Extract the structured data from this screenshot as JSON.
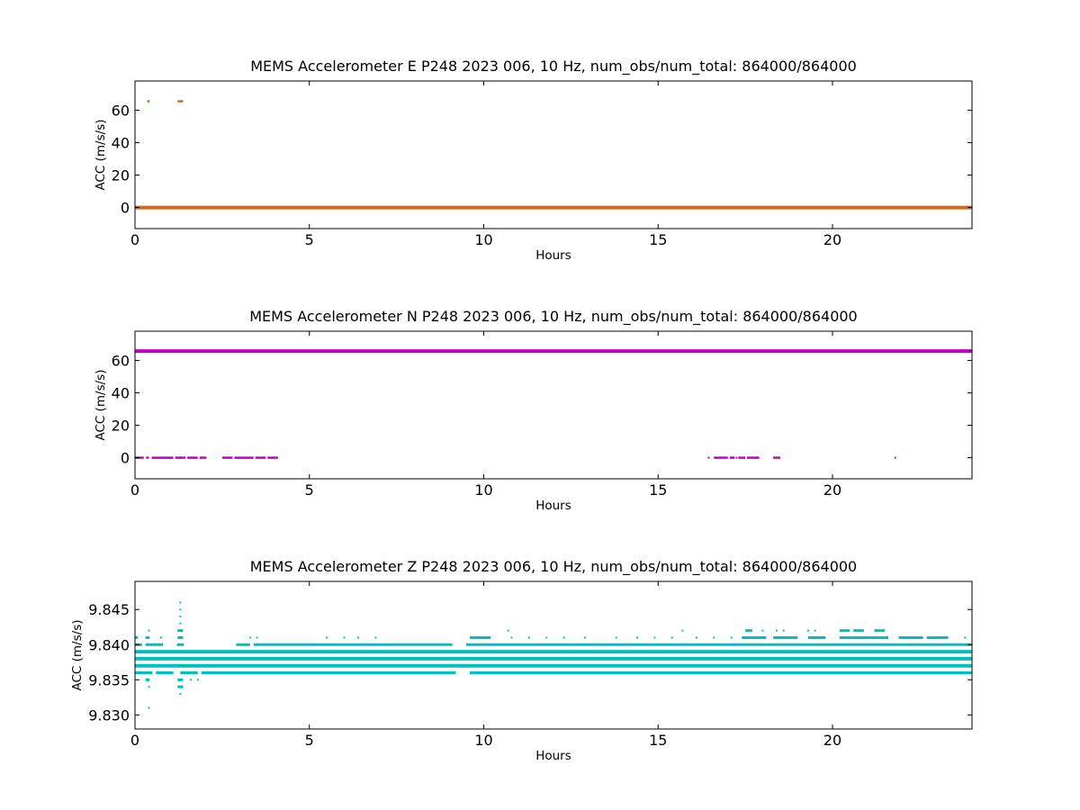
{
  "chart_data": [
    {
      "type": "scatter",
      "title": "MEMS Accelerometer E P248 2023 006, 10 Hz, num_obs/num_total: 864000/864000",
      "xlabel": "Hours",
      "ylabel": "ACC (m/s/s)",
      "xlim": [
        0,
        24
      ],
      "ylim": [
        -13,
        78
      ],
      "xticks": [
        0,
        5,
        10,
        15,
        20
      ],
      "yticks": [
        0,
        20,
        40,
        60
      ],
      "ytick_labels": [
        "0",
        "20",
        "40",
        "60"
      ],
      "grid": false,
      "color": "#d2691e",
      "series": [
        {
          "bands": [
            {
              "y": 0,
              "x_start": 0,
              "x_end": 24
            }
          ],
          "segments": [
            {
              "y": 65.5,
              "x_start": 0.35,
              "x_end": 0.42
            },
            {
              "y": 65.5,
              "x_start": 1.22,
              "x_end": 1.38
            }
          ],
          "points": []
        }
      ]
    },
    {
      "type": "scatter",
      "title": "MEMS Accelerometer N P248 2023 006, 10 Hz, num_obs/num_total: 864000/864000",
      "xlabel": "Hours",
      "ylabel": "ACC (m/s/s)",
      "xlim": [
        0,
        24
      ],
      "ylim": [
        -13,
        78
      ],
      "xticks": [
        0,
        5,
        10,
        15,
        20
      ],
      "yticks": [
        0,
        20,
        40,
        60
      ],
      "ytick_labels": [
        "0",
        "20",
        "40",
        "60"
      ],
      "grid": false,
      "color": "#bf00bf",
      "series": [
        {
          "bands": [
            {
              "y": 65.7,
              "x_start": 0,
              "x_end": 24
            }
          ],
          "segments": [
            {
              "y": 0,
              "x_start": 0.0,
              "x_end": 0.25
            },
            {
              "y": 0,
              "x_start": 0.32,
              "x_end": 0.4
            },
            {
              "y": 0,
              "x_start": 0.48,
              "x_end": 1.1
            },
            {
              "y": 0,
              "x_start": 1.15,
              "x_end": 1.45
            },
            {
              "y": 0,
              "x_start": 1.5,
              "x_end": 1.8
            },
            {
              "y": 0,
              "x_start": 1.85,
              "x_end": 2.05
            },
            {
              "y": 0,
              "x_start": 2.5,
              "x_end": 2.8
            },
            {
              "y": 0,
              "x_start": 2.85,
              "x_end": 3.4
            },
            {
              "y": 0,
              "x_start": 3.45,
              "x_end": 3.75
            },
            {
              "y": 0,
              "x_start": 3.8,
              "x_end": 4.1
            },
            {
              "y": 0,
              "x_start": 16.6,
              "x_end": 17.0
            },
            {
              "y": 0,
              "x_start": 17.05,
              "x_end": 17.2
            },
            {
              "y": 0,
              "x_start": 17.3,
              "x_end": 17.5
            },
            {
              "y": 0,
              "x_start": 17.55,
              "x_end": 17.9
            },
            {
              "y": 0,
              "x_start": 18.3,
              "x_end": 18.5
            }
          ],
          "points": [
            {
              "x": 16.45,
              "y": 0
            },
            {
              "x": 17.25,
              "y": 0
            },
            {
              "x": 21.8,
              "y": 0
            }
          ]
        }
      ]
    },
    {
      "type": "scatter",
      "title": "MEMS Accelerometer Z P248 2023 006, 10 Hz, num_obs/num_total: 864000/864000",
      "xlabel": "Hours",
      "ylabel": "ACC (m/s/s)",
      "xlim": [
        0,
        24
      ],
      "ylim": [
        9.828,
        9.849
      ],
      "xticks": [
        0,
        5,
        10,
        15,
        20
      ],
      "yticks": [
        9.83,
        9.835,
        9.84,
        9.845
      ],
      "ytick_labels": [
        "9.830",
        "9.835",
        "9.840",
        "9.845"
      ],
      "grid": false,
      "color": "#00bfbf",
      "series": [
        {
          "bands": [
            {
              "y": 9.837,
              "x_start": 0,
              "x_end": 24
            },
            {
              "y": 9.838,
              "x_start": 0,
              "x_end": 24
            },
            {
              "y": 9.839,
              "x_start": 0,
              "x_end": 24
            }
          ],
          "segments": [
            {
              "y": 9.84,
              "x_start": 0,
              "x_end": 0.2
            },
            {
              "y": 9.84,
              "x_start": 0.3,
              "x_end": 0.8
            },
            {
              "y": 9.84,
              "x_start": 1.2,
              "x_end": 1.4
            },
            {
              "y": 9.84,
              "x_start": 2.9,
              "x_end": 3.3
            },
            {
              "y": 9.84,
              "x_start": 3.4,
              "x_end": 9.1
            },
            {
              "y": 9.84,
              "x_start": 9.5,
              "x_end": 24
            },
            {
              "y": 9.836,
              "x_start": 0,
              "x_end": 0.5
            },
            {
              "y": 9.836,
              "x_start": 0.6,
              "x_end": 1.1
            },
            {
              "y": 9.836,
              "x_start": 1.3,
              "x_end": 1.8
            },
            {
              "y": 9.836,
              "x_start": 1.9,
              "x_end": 9.2
            },
            {
              "y": 9.836,
              "x_start": 9.6,
              "x_end": 24
            },
            {
              "y": 9.835,
              "x_start": 0.3,
              "x_end": 0.42
            },
            {
              "y": 9.835,
              "x_start": 1.22,
              "x_end": 1.38
            },
            {
              "y": 9.834,
              "x_start": 1.22,
              "x_end": 1.38
            },
            {
              "y": 9.841,
              "x_start": 0,
              "x_end": 0.08
            },
            {
              "y": 9.841,
              "x_start": 0.3,
              "x_end": 0.42
            },
            {
              "y": 9.841,
              "x_start": 1.22,
              "x_end": 1.38
            },
            {
              "y": 9.842,
              "x_start": 1.22,
              "x_end": 1.38
            },
            {
              "y": 9.842,
              "x_start": 17.5,
              "x_end": 17.7
            },
            {
              "y": 9.842,
              "x_start": 20.2,
              "x_end": 20.5
            },
            {
              "y": 9.842,
              "x_start": 20.6,
              "x_end": 20.9
            },
            {
              "y": 9.842,
              "x_start": 21.2,
              "x_end": 21.5
            },
            {
              "y": 9.841,
              "x_start": 20.2,
              "x_end": 21.1
            },
            {
              "y": 9.841,
              "x_start": 21.1,
              "x_end": 21.6
            },
            {
              "y": 9.841,
              "x_start": 21.9,
              "x_end": 22.6
            },
            {
              "y": 9.841,
              "x_start": 22.7,
              "x_end": 23.3
            },
            {
              "y": 9.841,
              "x_start": 17.4,
              "x_end": 18.1
            },
            {
              "y": 9.841,
              "x_start": 18.3,
              "x_end": 19.0
            },
            {
              "y": 9.841,
              "x_start": 19.3,
              "x_end": 19.8
            },
            {
              "y": 9.841,
              "x_start": 9.6,
              "x_end": 10.2
            }
          ],
          "points": [
            {
              "x": 0.4,
              "y": 9.831
            },
            {
              "x": 0.4,
              "y": 9.834
            },
            {
              "x": 0.4,
              "y": 9.842
            },
            {
              "x": 0.75,
              "y": 9.841
            },
            {
              "x": 1.3,
              "y": 9.833
            },
            {
              "x": 1.3,
              "y": 9.843
            },
            {
              "x": 1.3,
              "y": 9.844
            },
            {
              "x": 1.3,
              "y": 9.845
            },
            {
              "x": 1.3,
              "y": 9.846
            },
            {
              "x": 1.6,
              "y": 9.835
            },
            {
              "x": 1.8,
              "y": 9.835
            },
            {
              "x": 3.3,
              "y": 9.841
            },
            {
              "x": 3.5,
              "y": 9.841
            },
            {
              "x": 5.5,
              "y": 9.841
            },
            {
              "x": 6.0,
              "y": 9.841
            },
            {
              "x": 6.4,
              "y": 9.841
            },
            {
              "x": 6.9,
              "y": 9.841
            },
            {
              "x": 10.7,
              "y": 9.842
            },
            {
              "x": 10.8,
              "y": 9.841
            },
            {
              "x": 11.3,
              "y": 9.841
            },
            {
              "x": 11.8,
              "y": 9.841
            },
            {
              "x": 12.3,
              "y": 9.841
            },
            {
              "x": 12.9,
              "y": 9.841
            },
            {
              "x": 13.8,
              "y": 9.841
            },
            {
              "x": 14.4,
              "y": 9.841
            },
            {
              "x": 14.9,
              "y": 9.841
            },
            {
              "x": 15.4,
              "y": 9.841
            },
            {
              "x": 15.7,
              "y": 9.842
            },
            {
              "x": 16.1,
              "y": 9.841
            },
            {
              "x": 16.6,
              "y": 9.841
            },
            {
              "x": 17.1,
              "y": 9.841
            },
            {
              "x": 18.0,
              "y": 9.842
            },
            {
              "x": 18.4,
              "y": 9.842
            },
            {
              "x": 18.6,
              "y": 9.842
            },
            {
              "x": 19.3,
              "y": 9.842
            },
            {
              "x": 19.5,
              "y": 9.842
            },
            {
              "x": 23.3,
              "y": 9.841
            },
            {
              "x": 23.8,
              "y": 9.841
            }
          ]
        }
      ]
    }
  ]
}
